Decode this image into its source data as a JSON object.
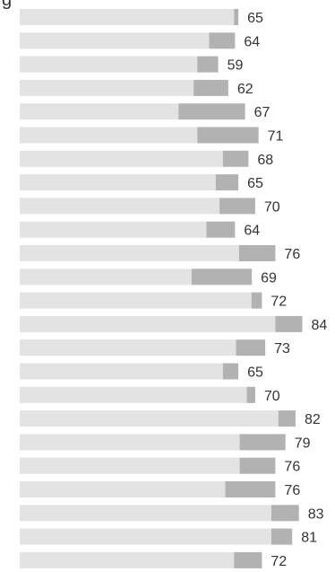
{
  "chart_data": {
    "type": "bar",
    "orientation": "horizontal",
    "title": "",
    "xlabel": "",
    "ylabel": "",
    "colors": {
      "base": "#e3e3e3",
      "change": "#b2b2b2",
      "text": "#333333"
    },
    "value_unit_min": 0,
    "value_unit_max": 90,
    "series": [
      {
        "values": [
          65,
          64,
          59,
          62,
          67,
          71,
          68,
          65,
          70,
          64,
          76,
          69,
          72,
          84,
          73,
          65,
          70,
          82,
          79,
          76,
          76,
          83,
          81,
          72
        ],
        "base_values": [
          63.7,
          56.3,
          52.8,
          51.7,
          47.2,
          52.8,
          60.4,
          58.3,
          59.4,
          55.5,
          65.2,
          51.1,
          68.9,
          76.0,
          64.3,
          60.4,
          67.5,
          76.9,
          65.4,
          65.4,
          61.1,
          74.8,
          74.8,
          63.7
        ],
        "labels": [
          "65",
          "64",
          "59",
          "62",
          "67",
          "71",
          "68",
          "65",
          "70",
          "64",
          "76",
          "69",
          "72",
          "84",
          "73",
          "65",
          "70",
          "82",
          "79",
          "76",
          "76",
          "83",
          "81",
          "72"
        ]
      }
    ]
  }
}
